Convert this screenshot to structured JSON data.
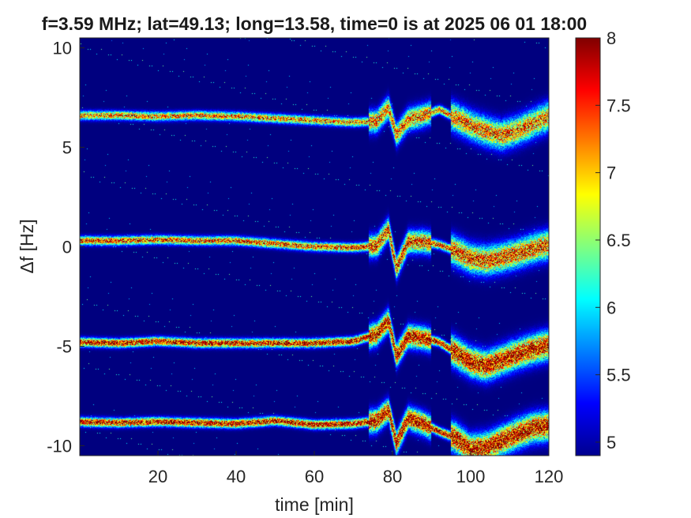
{
  "chart_data": {
    "type": "heatmap",
    "title": "f=3.59 MHz;  lat=49.13; long=13.58, time=0 is at 2025 06 01 18:00",
    "xlabel": "time [min]",
    "ylabel": "Δf [Hz]",
    "xlim": [
      0,
      120
    ],
    "ylim": [
      -10.5,
      10.5
    ],
    "x_ticks": [
      20,
      40,
      60,
      80,
      100,
      120
    ],
    "y_ticks": [
      -10,
      -5,
      0,
      5,
      10
    ],
    "colorbar": {
      "limits": [
        4.9,
        8
      ],
      "ticks": [
        5,
        5.5,
        6,
        6.5,
        7,
        7.5,
        8
      ],
      "colormap": "jet"
    },
    "background_value": 4.9,
    "traces": [
      {
        "centerline": [
          [
            0,
            6.6
          ],
          [
            10,
            6.6
          ],
          [
            20,
            6.55
          ],
          [
            30,
            6.6
          ],
          [
            40,
            6.55
          ],
          [
            50,
            6.45
          ],
          [
            60,
            6.35
          ],
          [
            70,
            6.25
          ],
          [
            76,
            6.3
          ],
          [
            79,
            7.0
          ],
          [
            81,
            5.6
          ],
          [
            84,
            6.4
          ],
          [
            88,
            6.6
          ],
          [
            92,
            6.9
          ],
          [
            96,
            6.5
          ],
          [
            100,
            6.1
          ],
          [
            104,
            5.8
          ],
          [
            108,
            5.6
          ],
          [
            112,
            5.85
          ],
          [
            116,
            6.2
          ],
          [
            120,
            6.55
          ]
        ],
        "peak": 7.3
      },
      {
        "centerline": [
          [
            0,
            0.3
          ],
          [
            10,
            0.3
          ],
          [
            20,
            0.35
          ],
          [
            30,
            0.3
          ],
          [
            40,
            0.3
          ],
          [
            50,
            0.15
          ],
          [
            60,
            0.0
          ],
          [
            70,
            -0.05
          ],
          [
            76,
            0.05
          ],
          [
            79,
            0.9
          ],
          [
            81,
            -1.1
          ],
          [
            84,
            0.25
          ],
          [
            88,
            0.25
          ],
          [
            92,
            0.1
          ],
          [
            96,
            -0.2
          ],
          [
            100,
            -0.6
          ],
          [
            104,
            -0.7
          ],
          [
            108,
            -0.55
          ],
          [
            112,
            -0.35
          ],
          [
            116,
            -0.1
          ],
          [
            120,
            0.1
          ]
        ],
        "peak": 7.5
      },
      {
        "centerline": [
          [
            0,
            -4.8
          ],
          [
            10,
            -4.85
          ],
          [
            20,
            -4.75
          ],
          [
            30,
            -4.85
          ],
          [
            40,
            -4.85
          ],
          [
            50,
            -4.85
          ],
          [
            60,
            -4.85
          ],
          [
            70,
            -4.75
          ],
          [
            76,
            -4.4
          ],
          [
            79,
            -3.7
          ],
          [
            81,
            -5.5
          ],
          [
            84,
            -4.5
          ],
          [
            88,
            -4.6
          ],
          [
            92,
            -4.8
          ],
          [
            96,
            -5.3
          ],
          [
            100,
            -5.8
          ],
          [
            104,
            -6.0
          ],
          [
            108,
            -5.7
          ],
          [
            112,
            -5.4
          ],
          [
            116,
            -5.15
          ],
          [
            120,
            -4.95
          ]
        ],
        "peak": 7.9
      },
      {
        "centerline": [
          [
            0,
            -8.8
          ],
          [
            10,
            -8.85
          ],
          [
            20,
            -8.8
          ],
          [
            30,
            -8.85
          ],
          [
            40,
            -8.9
          ],
          [
            50,
            -8.75
          ],
          [
            60,
            -8.95
          ],
          [
            70,
            -8.9
          ],
          [
            76,
            -8.75
          ],
          [
            79,
            -8.2
          ],
          [
            81,
            -9.9
          ],
          [
            84,
            -8.6
          ],
          [
            88,
            -8.9
          ],
          [
            92,
            -9.3
          ],
          [
            96,
            -9.6
          ],
          [
            100,
            -10.2
          ],
          [
            104,
            -10.1
          ],
          [
            108,
            -9.75
          ],
          [
            112,
            -9.4
          ],
          [
            116,
            -9.1
          ],
          [
            120,
            -9.0
          ]
        ],
        "peak": 7.9
      }
    ]
  }
}
